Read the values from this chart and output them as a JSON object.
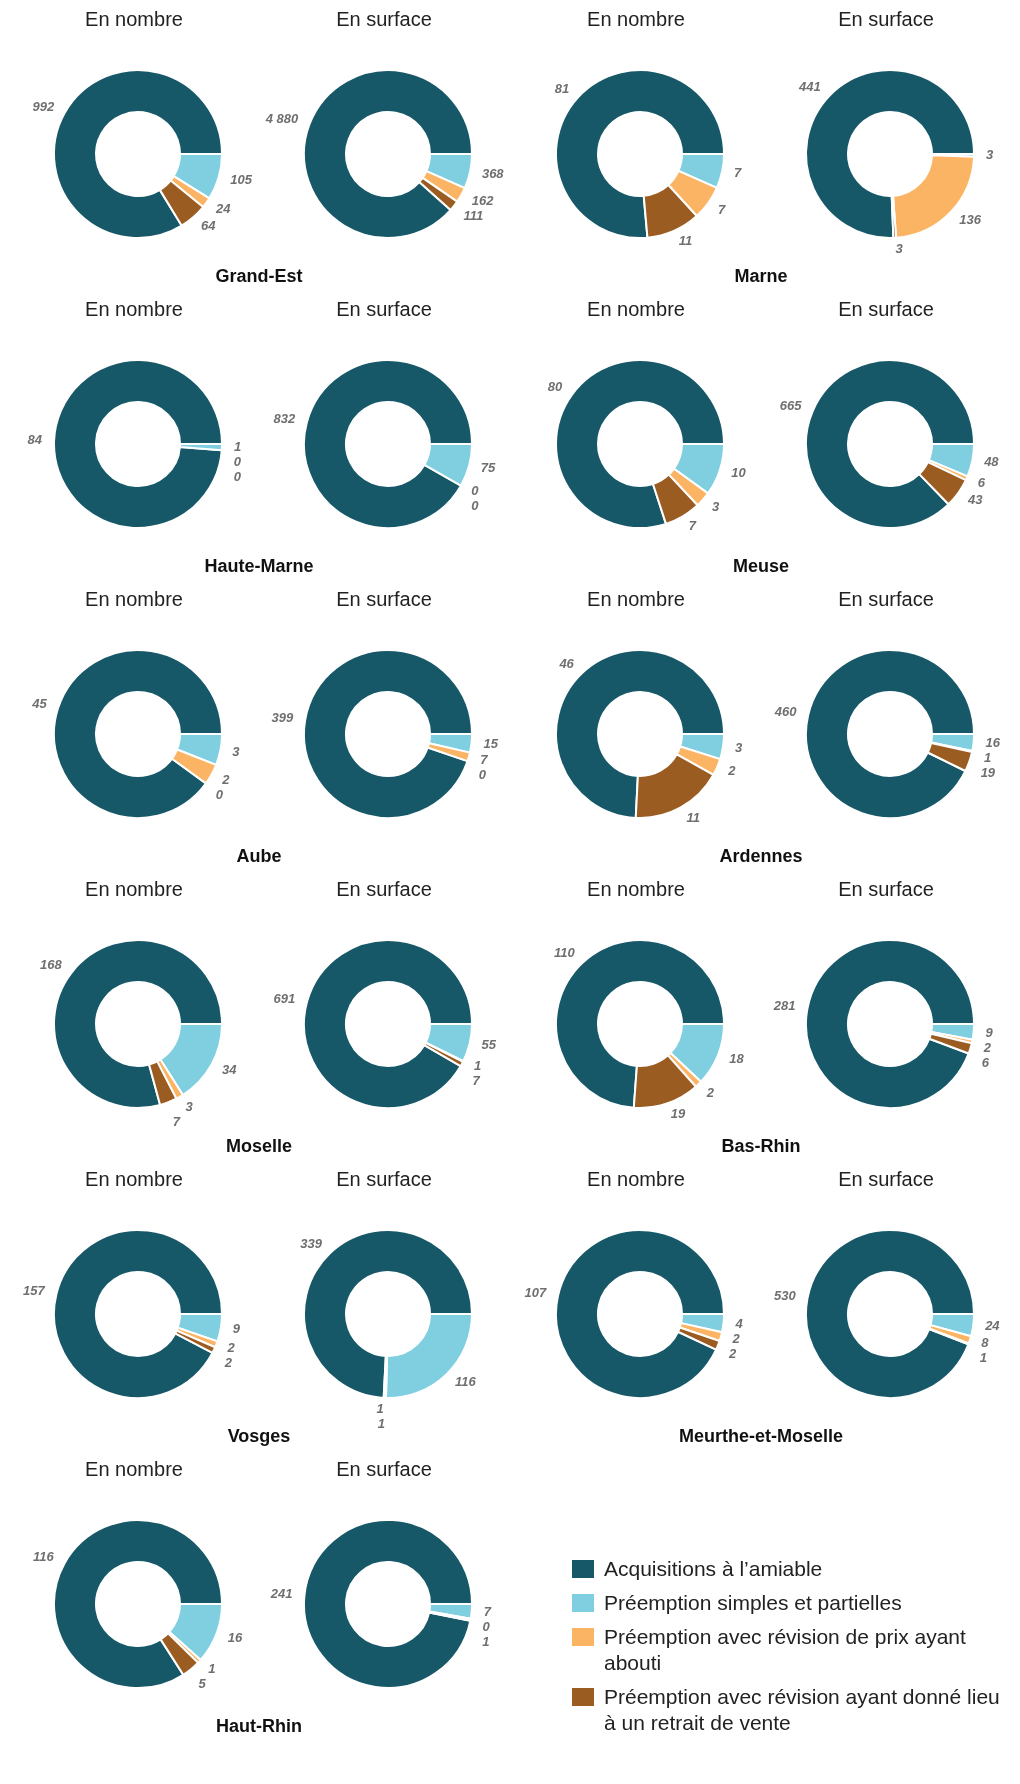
{
  "chart_data": [
    {
      "type": "donut",
      "title": "En nombre",
      "annotations": [
        "Grand-Est"
      ],
      "categories": [
        "Acquisitions à l’amiable",
        "Préemption simples et partielles",
        "Préemption avec révision de prix ayant abouti",
        "Préemption avec révision ayant donné lieu à un retrait de vente"
      ],
      "values": [
        992,
        105,
        24,
        64
      ],
      "colors": [
        "#175868",
        "#7fcfe0",
        "#fbb464",
        "#9b5c22"
      ],
      "data_labels": true,
      "legend": "bottom right"
    },
    {
      "type": "donut",
      "title": "En surface",
      "categories": [
        null,
        null,
        null,
        null
      ],
      "values": [
        4880,
        368,
        162,
        111
      ],
      "colors": [
        "#175868",
        "#7fcfe0",
        "#fbb464",
        "#9b5c22"
      ],
      "value_labels": [
        "4 880",
        "368",
        "162",
        "111"
      ]
    },
    {
      "type": "donut",
      "title": "En nombre",
      "annotations": [
        "Marne"
      ],
      "categories": [
        null,
        null,
        null,
        null
      ],
      "values": [
        81,
        7,
        7,
        11
      ],
      "colors": [
        "#175868",
        "#7fcfe0",
        "#fbb464",
        "#9b5c22"
      ],
      "data_labels": true
    },
    {
      "type": "donut",
      "title": "En surface",
      "categories": [
        null,
        null,
        null,
        null
      ],
      "values": [
        441,
        3,
        136,
        3
      ],
      "colors": [
        "#175868",
        "#7fcfe0",
        "#fbb464",
        "#9b5c22"
      ],
      "data_labels": true
    },
    {
      "type": "donut",
      "title": "En nombre",
      "annotations": [
        "Haute-Marne"
      ],
      "categories": [
        null,
        null,
        null,
        null
      ],
      "values": [
        84,
        1,
        0,
        0
      ],
      "colors": [
        "#175868",
        "#7fcfe0",
        "#fbb464",
        "#9b5c22"
      ],
      "value_labels": [
        "84",
        "1",
        "0",
        "0"
      ]
    },
    {
      "type": "donut",
      "title": "En surface",
      "categories": [
        null,
        null,
        null,
        null
      ],
      "values": [
        832,
        75,
        0,
        0
      ],
      "colors": [
        "#175868",
        "#7fcfe0",
        "#fbb464",
        "#9b5c22"
      ],
      "value_labels": [
        "832",
        "75",
        "0",
        "0"
      ]
    },
    {
      "type": "donut",
      "title": "En nombre",
      "annotations": [
        "Meuse"
      ],
      "categories": [
        null,
        null,
        null,
        null
      ],
      "values": [
        80,
        10,
        3,
        7
      ],
      "colors": [
        "#175868",
        "#7fcfe0",
        "#fbb464",
        "#9b5c22"
      ],
      "data_labels": true
    },
    {
      "type": "donut",
      "title": "En surface",
      "categories": [
        null,
        null,
        null,
        null
      ],
      "values": [
        665,
        48,
        6,
        43
      ],
      "colors": [
        "#175868",
        "#7fcfe0",
        "#fbb464",
        "#9b5c22"
      ],
      "data_labels": true
    },
    {
      "type": "donut",
      "title": "En nombre",
      "annotations": [
        "Aube"
      ],
      "categories": [
        null,
        null,
        null,
        null
      ],
      "values": [
        45,
        3,
        2,
        0
      ],
      "colors": [
        "#175868",
        "#7fcfe0",
        "#fbb464",
        "#9b5c22"
      ],
      "value_labels": [
        "45",
        "3",
        "2",
        "0"
      ]
    },
    {
      "type": "donut",
      "title": "En surface",
      "categories": [
        null,
        null,
        null,
        null
      ],
      "values": [
        399,
        15,
        7,
        0
      ],
      "colors": [
        "#175868",
        "#7fcfe0",
        "#fbb464",
        "#9b5c22"
      ],
      "value_labels": [
        "399",
        "15",
        "7",
        "0"
      ]
    },
    {
      "type": "donut",
      "title": "En nombre",
      "annotations": [
        "Ardennes"
      ],
      "categories": [
        null,
        null,
        null,
        null
      ],
      "values": [
        46,
        3,
        2,
        11
      ],
      "colors": [
        "#175868",
        "#7fcfe0",
        "#fbb464",
        "#9b5c22"
      ],
      "data_labels": true
    },
    {
      "type": "donut",
      "title": "En surface",
      "categories": [
        null,
        null,
        null,
        null
      ],
      "values": [
        460,
        16,
        1,
        19
      ],
      "colors": [
        "#175868",
        "#7fcfe0",
        "#fbb464",
        "#9b5c22"
      ],
      "data_labels": true
    },
    {
      "type": "donut",
      "title": "En nombre",
      "annotations": [
        "Moselle"
      ],
      "categories": [
        null,
        null,
        null,
        null
      ],
      "values": [
        168,
        34,
        3,
        7
      ],
      "colors": [
        "#175868",
        "#7fcfe0",
        "#fbb464",
        "#9b5c22"
      ],
      "data_labels": true
    },
    {
      "type": "donut",
      "title": "En surface",
      "categories": [
        null,
        null,
        null,
        null
      ],
      "values": [
        691,
        55,
        1,
        7
      ],
      "colors": [
        "#175868",
        "#7fcfe0",
        "#fbb464",
        "#9b5c22"
      ],
      "data_labels": true
    },
    {
      "type": "donut",
      "title": "En nombre",
      "annotations": [
        "Bas-Rhin"
      ],
      "categories": [
        null,
        null,
        null,
        null
      ],
      "values": [
        110,
        18,
        2,
        19
      ],
      "colors": [
        "#175868",
        "#7fcfe0",
        "#fbb464",
        "#9b5c22"
      ],
      "data_labels": true
    },
    {
      "type": "donut",
      "title": "En surface",
      "categories": [
        null,
        null,
        null,
        null
      ],
      "values": [
        281,
        9,
        2,
        6
      ],
      "colors": [
        "#175868",
        "#7fcfe0",
        "#fbb464",
        "#9b5c22"
      ],
      "data_labels": true
    },
    {
      "type": "donut",
      "title": "En nombre",
      "annotations": [
        "Vosges"
      ],
      "categories": [
        null,
        null,
        null,
        null
      ],
      "values": [
        157,
        9,
        2,
        2
      ],
      "colors": [
        "#175868",
        "#7fcfe0",
        "#fbb464",
        "#9b5c22"
      ],
      "data_labels": true
    },
    {
      "type": "donut",
      "title": "En surface",
      "categories": [
        null,
        null,
        null,
        null
      ],
      "values": [
        339,
        116,
        1,
        1
      ],
      "colors": [
        "#175868",
        "#7fcfe0",
        "#fbb464",
        "#9b5c22"
      ],
      "data_labels": true
    },
    {
      "type": "donut",
      "title": "En nombre",
      "annotations": [
        "Meurthe-et-Moselle"
      ],
      "categories": [
        null,
        null,
        null,
        null
      ],
      "values": [
        107,
        4,
        2,
        2
      ],
      "colors": [
        "#175868",
        "#7fcfe0",
        "#fbb464",
        "#9b5c22"
      ],
      "data_labels": true
    },
    {
      "type": "donut",
      "title": "En surface",
      "categories": [
        null,
        null,
        null,
        null
      ],
      "values": [
        530,
        24,
        8,
        1
      ],
      "colors": [
        "#175868",
        "#7fcfe0",
        "#fbb464",
        "#9b5c22"
      ],
      "data_labels": true
    },
    {
      "type": "donut",
      "title": "En nombre",
      "annotations": [
        "Haut-Rhin"
      ],
      "categories": [
        null,
        null,
        null,
        null
      ],
      "values": [
        116,
        16,
        1,
        5
      ],
      "colors": [
        "#175868",
        "#7fcfe0",
        "#fbb464",
        "#9b5c22"
      ],
      "data_labels": true
    },
    {
      "type": "donut",
      "title": "En surface",
      "categories": [
        null,
        null,
        null,
        null
      ],
      "values": [
        241,
        7,
        0,
        1
      ],
      "colors": [
        "#175868",
        "#7fcfe0",
        "#fbb464",
        "#9b5c22"
      ],
      "value_labels": [
        "241",
        "7",
        "0",
        "1"
      ]
    }
  ]
}
